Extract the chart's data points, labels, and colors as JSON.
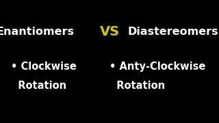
{
  "background_color": "#000000",
  "title_left": "Enantiomers",
  "title_vs": "VS",
  "title_right": "Diastereomers",
  "title_color": "#ffffff",
  "vs_color": "#d4c800",
  "bullet_left_line1": "• Clockwise",
  "bullet_left_line2": "  Rotation",
  "bullet_right_line1": "• Anty-Clockwise",
  "bullet_right_line2": "  Rotation",
  "bullet_color": "#ffffff",
  "title_fontsize": 11.5,
  "vs_fontsize": 14,
  "bullet_fontsize": 10.5,
  "fig_width": 3.2,
  "fig_height": 1.8,
  "fig_dpi": 100
}
